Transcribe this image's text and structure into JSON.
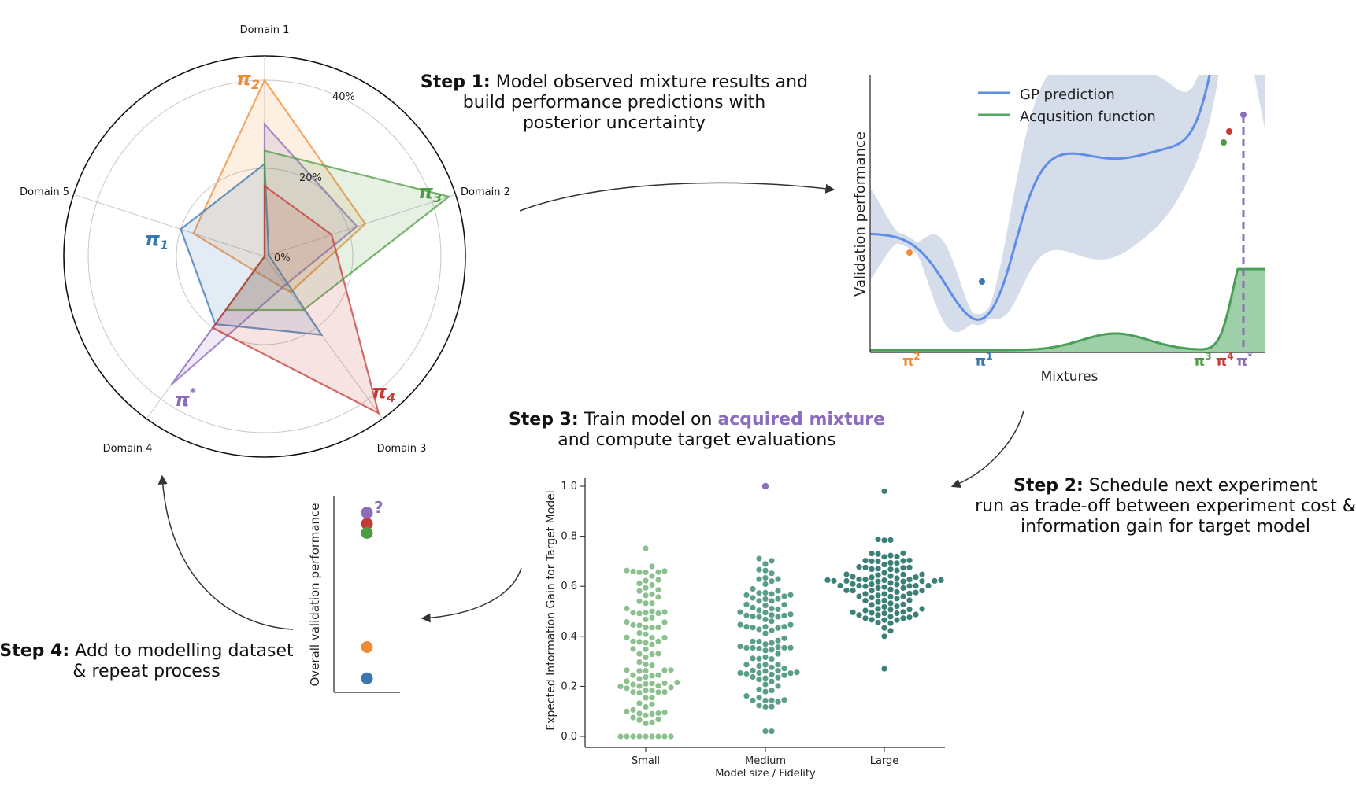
{
  "colors": {
    "pi1": "#3a76b0",
    "pi2": "#ef8c34",
    "pi3": "#4c9c43",
    "pi4": "#c43b35",
    "pistar": "#8b6cbd",
    "gp_line": "#5f8de8",
    "gp_band": "#d5dcea",
    "acq": "#50a862",
    "small": "#8cc08e",
    "medium": "#5a9e86",
    "large": "#3b8076"
  },
  "steps": {
    "step1": {
      "label": "Step 1:",
      "line1": "Model observed mixture results and",
      "line2": "build performance predictions with",
      "line3": "posterior uncertainty"
    },
    "step2": {
      "label": "Step 2:",
      "line1": "Schedule next experiment",
      "line2": "run as trade-off between experiment cost &",
      "line3": "information gain for target model"
    },
    "step3": {
      "label": "Step 3:",
      "line1_pre": "Train model on",
      "highlight": "acquired mixture",
      "line2": "and compute target evaluations"
    },
    "step4": {
      "label": "Step 4:",
      "line1": "Add to modelling dataset",
      "line2": "& repeat process"
    }
  },
  "radar": {
    "domains": [
      "Domain 1",
      "Domain 2",
      "Domain 3",
      "Domain 4",
      "Domain 5"
    ],
    "ticks": [
      "0%",
      "20%",
      "40%"
    ],
    "mixtures": [
      {
        "id": "pi2",
        "label": "π",
        "sub": "2",
        "values": [
          40,
          24,
          10,
          4,
          17
        ]
      },
      {
        "id": "pistar",
        "label": "π",
        "sup": "*",
        "values": [
          30,
          22,
          8,
          36,
          0
        ]
      },
      {
        "id": "pi1",
        "label": "π",
        "sub": "1",
        "values": [
          21,
          1,
          22,
          19,
          20
        ]
      },
      {
        "id": "pi3",
        "label": "π",
        "sub": "3",
        "values": [
          24,
          44,
          15,
          15,
          0
        ]
      },
      {
        "id": "pi4",
        "label": "π",
        "sub": "4",
        "values": [
          16,
          16,
          44,
          20,
          0
        ]
      }
    ]
  },
  "gp": {
    "legend": [
      "GP prediction",
      "Acqusition function"
    ],
    "ylabel": "Validation performance",
    "xlabel": "Mixtures",
    "markers": [
      {
        "id": "pi2",
        "text": "π",
        "sup": "2"
      },
      {
        "id": "pi1",
        "text": "π",
        "sup": "1"
      },
      {
        "id": "pi3",
        "text": "π",
        "sup": "3"
      },
      {
        "id": "pi4",
        "text": "π",
        "sup": "4"
      },
      {
        "id": "pistar",
        "text": "π",
        "sup": "*"
      }
    ]
  },
  "swarm": {
    "ylabel": "Expected Information Gain for Target Model",
    "xlabel": "Model size / Fidelity",
    "yticks": [
      "0.0",
      "0.2",
      "0.4",
      "0.6",
      "0.8",
      "1.0"
    ],
    "categories": [
      "Small",
      "Medium",
      "Large"
    ]
  },
  "validation": {
    "ylabel": "Overall validation performance",
    "question": "?",
    "points": [
      {
        "id": "pistar",
        "value": 0.95
      },
      {
        "id": "pi4",
        "value": 0.89
      },
      {
        "id": "pi3",
        "value": 0.84
      },
      {
        "id": "pi2",
        "value": 0.22
      },
      {
        "id": "pi1",
        "value": 0.05
      }
    ]
  }
}
